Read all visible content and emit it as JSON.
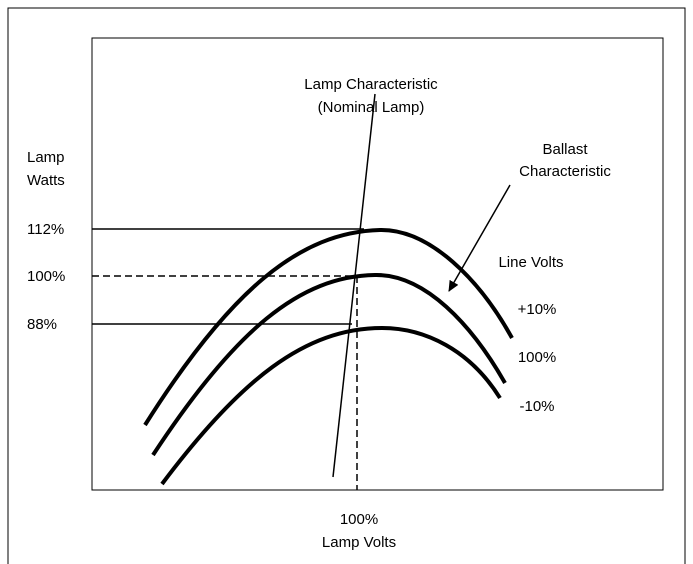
{
  "lamp_characteristic": {
    "label": [
      "Lamp Characteristic",
      "(Nominal Lamp)"
    ]
  },
  "y_axis": {
    "title": [
      "Lamp",
      "Watts"
    ],
    "levels": [
      "112%",
      "100%",
      "88%"
    ]
  },
  "ballast_characteristic": {
    "label": [
      "Ballast",
      "Characteristic"
    ]
  },
  "line_volts": {
    "title": "Line Volts",
    "curves": [
      "+10%",
      "100%",
      "-10%"
    ]
  },
  "x_axis": {
    "level": "100%",
    "title": "Lamp Volts"
  }
}
